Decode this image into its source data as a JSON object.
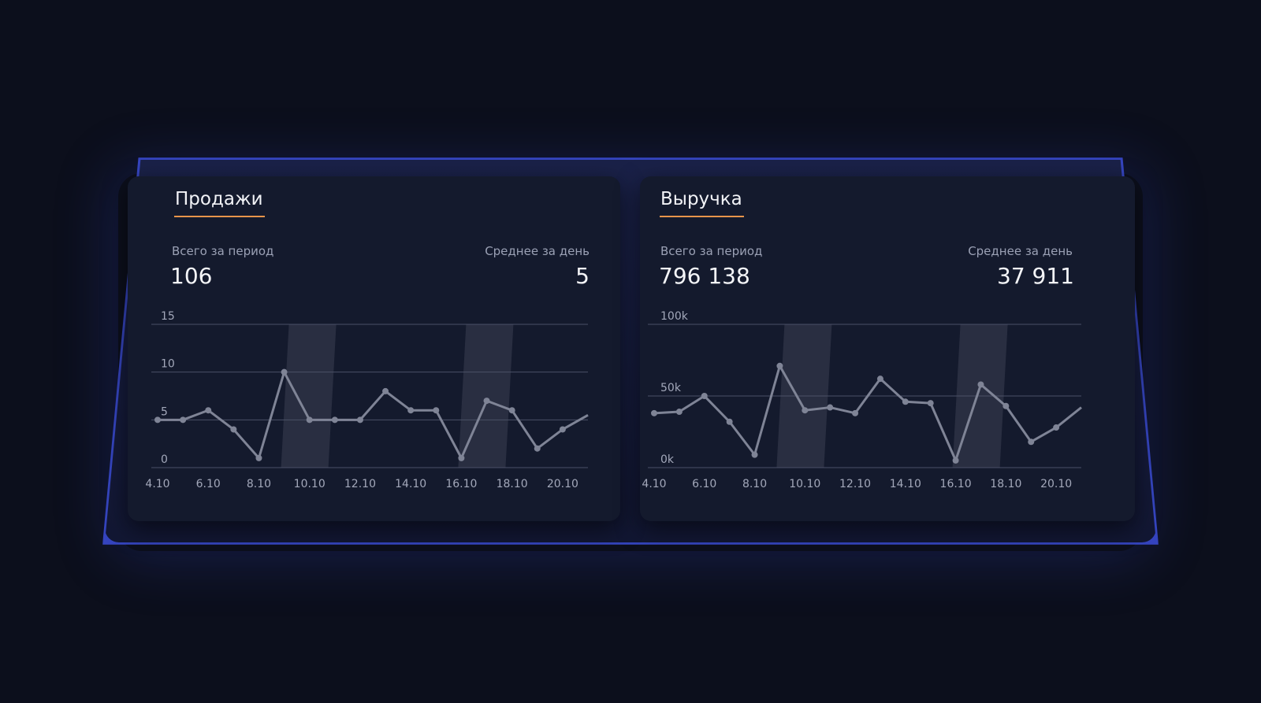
{
  "panels": [
    {
      "title": "Продажи",
      "total_label": "Всего за период",
      "total_value": "106",
      "avg_label": "Среднее за день",
      "avg_value": "5",
      "chart_data": {
        "type": "line",
        "title": "",
        "xlabel": "",
        "ylabel": "",
        "ylim": [
          0,
          15
        ],
        "y_ticks": [
          "0",
          "5",
          "10",
          "15"
        ],
        "x": [
          "4.10",
          "5.10",
          "6.10",
          "7.10",
          "8.10",
          "9.10",
          "10.10",
          "11.10",
          "12.10",
          "13.10",
          "14.10",
          "15.10",
          "16.10",
          "17.10",
          "18.10",
          "19.10",
          "20.10",
          "21.10"
        ],
        "x_tick_labels": [
          "4.10",
          "6.10",
          "8.10",
          "10.10",
          "12.10",
          "14.10",
          "16.10",
          "18.10",
          "20.10"
        ],
        "values": [
          5,
          5,
          6,
          4,
          1,
          10,
          5,
          5,
          5,
          8,
          6,
          6,
          1,
          7,
          6,
          2,
          4,
          5.5
        ],
        "highlight_ranges": [
          [
            "9.10",
            "10.10"
          ],
          [
            "16.10",
            "17.10"
          ]
        ],
        "grid": true
      }
    },
    {
      "title": "Выручка",
      "total_label": "Всего за период",
      "total_value": "796 138",
      "avg_label": "Среднее за день",
      "avg_value": "37 911",
      "chart_data": {
        "type": "line",
        "title": "",
        "xlabel": "",
        "ylabel": "",
        "ylim": [
          0,
          100000
        ],
        "y_ticks": [
          "0k",
          "50k",
          "100k"
        ],
        "x": [
          "4.10",
          "5.10",
          "6.10",
          "7.10",
          "8.10",
          "9.10",
          "10.10",
          "11.10",
          "12.10",
          "13.10",
          "14.10",
          "15.10",
          "16.10",
          "17.10",
          "18.10",
          "19.10",
          "20.10",
          "21.10"
        ],
        "x_tick_labels": [
          "4.10",
          "6.10",
          "8.10",
          "10.10",
          "12.10",
          "14.10",
          "16.10",
          "18.10",
          "20.10"
        ],
        "values": [
          38000,
          39000,
          50000,
          32000,
          9000,
          71000,
          40000,
          42000,
          38000,
          62000,
          46000,
          45000,
          5000,
          58000,
          43000,
          18000,
          28000,
          42000
        ],
        "highlight_ranges": [
          [
            "9.10",
            "10.10"
          ],
          [
            "16.10",
            "17.10"
          ]
        ],
        "grid": true
      }
    }
  ],
  "colors": {
    "background": "#0c0f1c",
    "frame_border": "#3a4bd0",
    "panel": "#141a2d",
    "accent_underline": "#e8944a",
    "line": "#7f8496",
    "grid": "#4a5066",
    "highlight": "#3a3f52"
  }
}
